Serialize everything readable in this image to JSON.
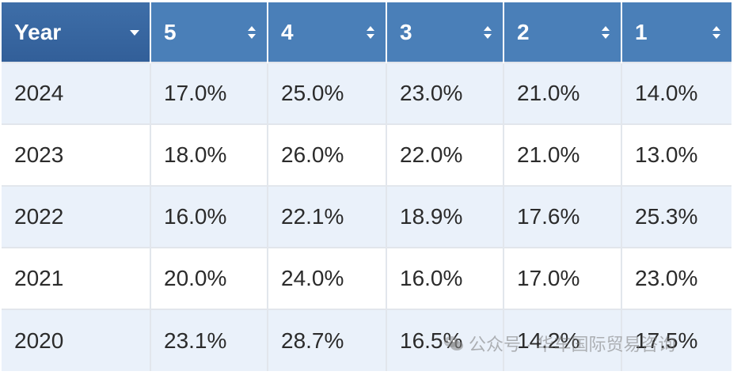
{
  "table": {
    "headers": [
      "Year",
      "5",
      "4",
      "3",
      "2",
      "1"
    ],
    "rows": [
      [
        "2024",
        "17.0%",
        "25.0%",
        "23.0%",
        "21.0%",
        "14.0%"
      ],
      [
        "2023",
        "18.0%",
        "26.0%",
        "22.0%",
        "21.0%",
        "13.0%"
      ],
      [
        "2022",
        "16.0%",
        "22.1%",
        "18.9%",
        "17.6%",
        "25.3%"
      ],
      [
        "2021",
        "20.0%",
        "24.0%",
        "16.0%",
        "17.0%",
        "23.0%"
      ],
      [
        "2020",
        "23.1%",
        "28.7%",
        "16.5%",
        "14.2%",
        "17.5%"
      ]
    ]
  },
  "watermark": {
    "text": "公众号 · 华车国际贸易咨询",
    "icon": "wechat-icon"
  },
  "colors": {
    "header_bg": "#4a7fb8",
    "year_header_bg": "#3e6ea8",
    "row_alt_bg": "#eaf1fa"
  }
}
